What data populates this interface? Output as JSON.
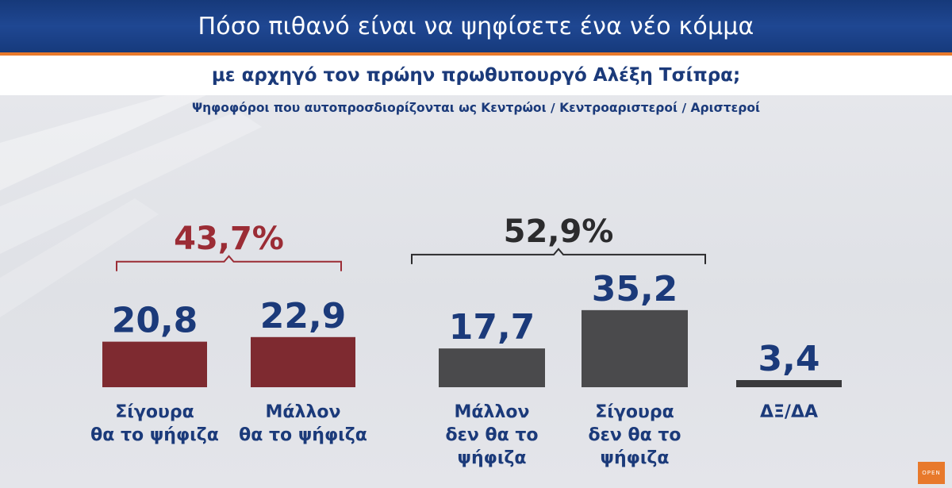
{
  "header": {
    "title": "Πόσο πιθανό είναι να ψηφίσετε ένα νέο κόμμα",
    "subtitle": "με αρχηγό τον πρώην πρωθυπουργό Αλέξη Τσίπρα;",
    "note": "Ψηφοφόροι που αυτοπροσδιορίζονται ως Κεντρώοι / Κεντροαριστεροί / Αριστεροί"
  },
  "colors": {
    "header_blue": "#1f4792",
    "accent_orange": "#e8792b",
    "value_blue": "#1b3a7a",
    "positive_red": "#7e2a30",
    "negative_gray": "#4a4a4c"
  },
  "chart_data": {
    "type": "bar",
    "categories": [
      "Σίγουρα θα το ψήφιζα",
      "Μάλλον θα το ψήφιζα",
      "Μάλλον δεν θα το ψήφιζα",
      "Σίγουρα δεν θα το ψήφιζα",
      "ΔΞ/ΔΑ"
    ],
    "category_lines": [
      [
        "Σίγουρα",
        "θα το ψήφιζα"
      ],
      [
        "Μάλλον",
        "θα το ψήφιζα"
      ],
      [
        "Μάλλον",
        "δεν θα το",
        "ψήφιζα"
      ],
      [
        "Σίγουρα",
        "δεν θα το",
        "ψήφιζα"
      ],
      [
        "ΔΞ/ΔΑ"
      ]
    ],
    "values": [
      20.8,
      22.9,
      17.7,
      35.2,
      3.4
    ],
    "value_labels": [
      "20,8",
      "22,9",
      "17,7",
      "35,2",
      "3,4"
    ],
    "bar_colors": [
      "#7e2a30",
      "#7e2a30",
      "#4a4a4c",
      "#4a4a4c",
      "#3a3a3c"
    ],
    "groups": [
      {
        "label": "43,7%",
        "members": [
          0,
          1
        ],
        "color": "#9b2c35"
      },
      {
        "label": "52,9%",
        "members": [
          2,
          3
        ],
        "color": "#2b2b2d"
      }
    ],
    "grid": false,
    "legend": "none"
  },
  "logo": {
    "text": "OPEN"
  }
}
